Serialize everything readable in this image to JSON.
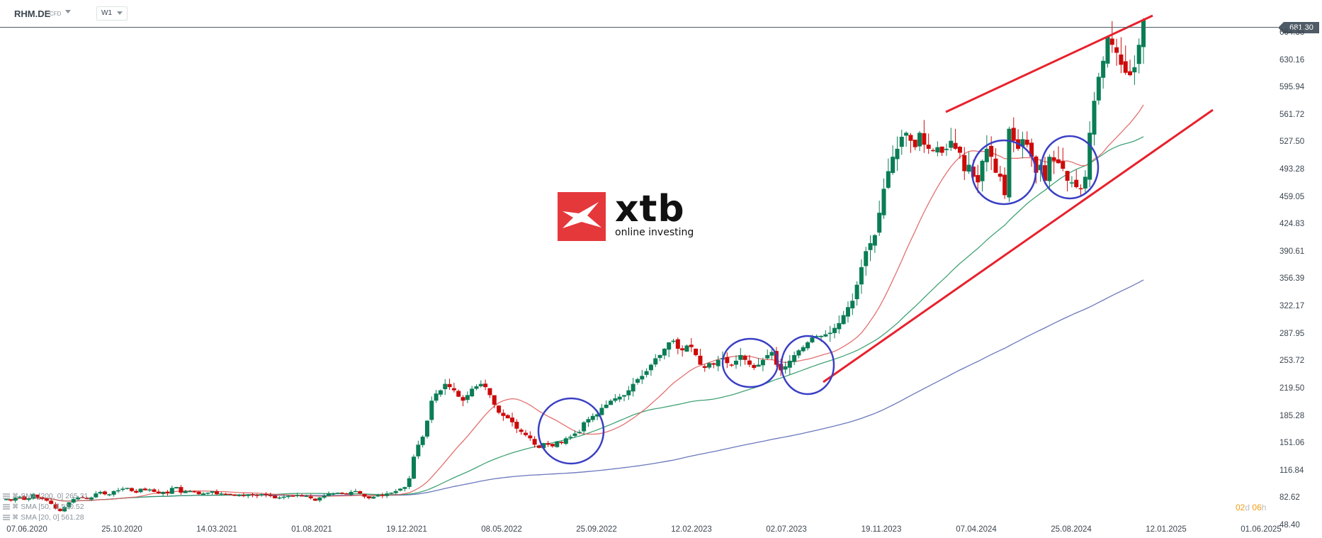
{
  "header": {
    "symbol": "RHM.DE",
    "instrument_type": "CFD",
    "timeframe": "W1"
  },
  "current_price": "681.30",
  "countdown": {
    "days": "02",
    "days_unit": "d",
    "hours": "06",
    "hours_unit": "h"
  },
  "legend": [
    {
      "label": "SMA [200, 0] 265.31",
      "color": "#5060b0"
    },
    {
      "label": "SMA [50, 0] 520.52",
      "color": "#2e9966"
    },
    {
      "label": "SMA [20, 0] 561.28",
      "color": "#e06060"
    }
  ],
  "logo": {
    "brand": "xtb",
    "tagline": "online investing"
  },
  "colors": {
    "up": "#0a7d55",
    "down": "#cc0a0a",
    "trendline": "#e8212c",
    "circle": "#3a3fc4",
    "sma20": "#e06060",
    "sma50": "#2e9966",
    "sma200": "#5060b0",
    "axis_text": "#3b4650"
  },
  "chart_data": {
    "type": "candlestick",
    "title": "RHM.DE CFD W1",
    "xlabel": "",
    "ylabel": "",
    "y_ticks": [
      "681.30",
      "664.38",
      "630.16",
      "595.94",
      "561.72",
      "527.50",
      "493.28",
      "459.05",
      "424.83",
      "390.61",
      "356.39",
      "322.17",
      "287.95",
      "253.72",
      "219.50",
      "185.28",
      "151.06",
      "116.84",
      "82.62",
      "48.40"
    ],
    "x_ticks": [
      "07.06.2020",
      "25.10.2020",
      "14.03.2021",
      "01.08.2021",
      "19.12.2021",
      "08.05.2022",
      "25.09.2022",
      "12.02.2023",
      "02.07.2023",
      "19.11.2023",
      "07.04.2024",
      "25.08.2024",
      "12.01.2025",
      "01.06.2025"
    ],
    "ylim": [
      48.4,
      681.3
    ],
    "weekly_closes_approx": [
      82,
      80,
      84,
      85,
      81,
      83,
      88,
      84,
      82,
      80,
      76,
      70,
      67,
      72,
      78,
      82,
      84,
      84,
      82,
      84,
      89,
      91,
      88,
      88,
      92,
      93,
      95,
      96,
      92,
      90,
      95,
      93,
      94,
      91,
      89,
      91,
      89,
      96,
      97,
      90,
      92,
      92,
      91,
      88,
      89,
      90,
      92,
      88,
      89,
      88,
      88,
      86,
      87,
      86,
      88,
      87,
      86,
      88,
      87,
      86,
      83,
      84,
      85,
      86,
      86,
      87,
      86,
      86,
      83,
      80,
      84,
      86,
      89,
      89,
      90,
      89,
      88,
      91,
      92,
      89,
      85,
      83,
      85,
      87,
      86,
      89,
      90,
      92,
      95,
      97,
      108,
      135,
      150,
      160,
      180,
      205,
      214,
      218,
      226,
      222,
      218,
      210,
      205,
      212,
      220,
      223,
      226,
      222,
      212,
      200,
      190,
      186,
      183,
      178,
      170,
      166,
      162,
      158,
      150,
      146,
      152,
      150,
      148,
      154,
      152,
      158,
      160,
      164,
      166,
      178,
      182,
      186,
      188,
      196,
      200,
      205,
      208,
      210,
      212,
      218,
      226,
      232,
      236,
      242,
      250,
      258,
      262,
      270,
      278,
      280,
      270,
      268,
      274,
      272,
      262,
      250,
      246,
      252,
      250,
      256,
      258,
      252,
      250,
      255,
      262,
      256,
      250,
      246,
      250,
      256,
      262,
      266,
      250,
      243,
      248,
      255,
      262,
      268,
      272,
      278,
      284,
      286,
      286,
      288,
      290,
      296,
      302,
      312,
      322,
      330,
      350,
      372,
      392,
      402,
      412,
      440,
      470,
      492,
      510,
      520,
      535,
      540,
      530,
      522,
      540,
      525,
      520,
      518,
      522,
      515,
      520,
      530,
      520,
      515,
      492,
      500,
      485,
      478,
      505,
      520,
      510,
      490,
      485,
      462,
      545,
      530,
      520,
      532,
      525,
      510,
      490,
      500,
      480,
      510,
      505,
      502,
      495,
      480,
      478,
      472,
      470,
      485,
      540,
      580,
      610,
      630,
      660,
      650,
      640,
      625,
      615,
      612,
      622,
      650,
      681
    ]
  },
  "annotations": {
    "upper_trendline": "from ~566 (Mar 2024) to ~695 (Jan 2025)",
    "lower_trendline": "from ~228 (Sep 2023) to ~572 (Mar 2025)",
    "circles": 5
  }
}
